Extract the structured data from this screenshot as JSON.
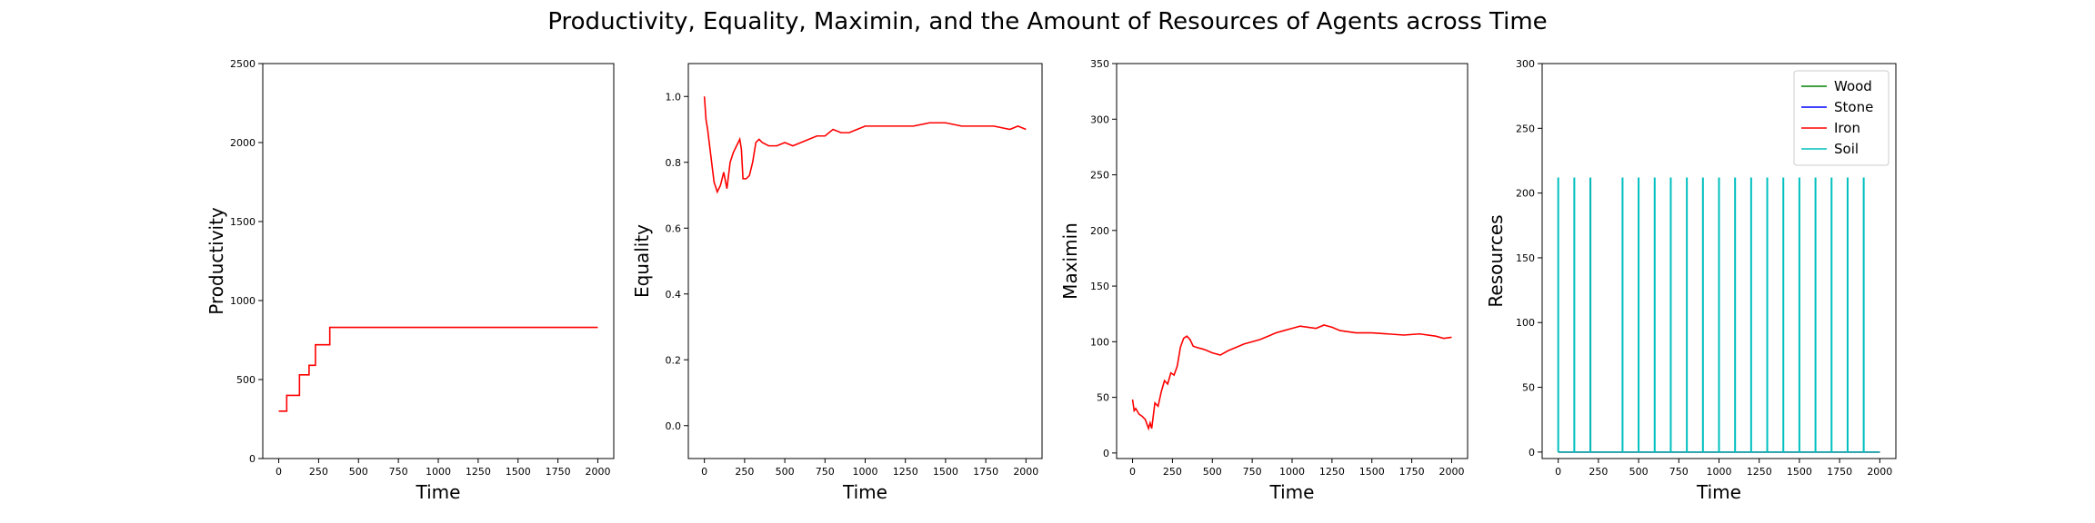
{
  "figure": {
    "title": "Productivity, Equality, Maximin, and the Amount of Resources of Agents across Time"
  },
  "chart_data": [
    {
      "type": "line",
      "xlabel": "Time",
      "ylabel": "Productivity",
      "xlim": [
        -100,
        2100
      ],
      "ylim": [
        0,
        2500
      ],
      "xticks": [
        0,
        250,
        500,
        750,
        1000,
        1250,
        1500,
        1750,
        2000
      ],
      "yticks": [
        0,
        500,
        1000,
        1500,
        2000,
        2500
      ],
      "series": [
        {
          "color": "#ff0000",
          "x": [
            0,
            50,
            50,
            130,
            130,
            190,
            190,
            230,
            230,
            320,
            320,
            2000
          ],
          "y": [
            300,
            300,
            400,
            400,
            530,
            530,
            590,
            590,
            720,
            720,
            830,
            830
          ]
        }
      ]
    },
    {
      "type": "line",
      "xlabel": "Time",
      "ylabel": "Equality",
      "xlim": [
        -100,
        2100
      ],
      "ylim": [
        -0.1,
        1.1
      ],
      "xticks": [
        0,
        250,
        500,
        750,
        1000,
        1250,
        1500,
        1750,
        2000
      ],
      "yticks": [
        0.0,
        0.2,
        0.4,
        0.6,
        0.8,
        1.0
      ],
      "series": [
        {
          "color": "#ff0000",
          "x": [
            0,
            10,
            20,
            30,
            40,
            60,
            80,
            100,
            120,
            140,
            160,
            180,
            200,
            220,
            230,
            240,
            260,
            280,
            300,
            320,
            340,
            360,
            400,
            450,
            500,
            550,
            600,
            650,
            700,
            750,
            800,
            850,
            900,
            950,
            1000,
            1100,
            1200,
            1300,
            1400,
            1500,
            1600,
            1700,
            1800,
            1900,
            1950,
            2000
          ],
          "y": [
            1.0,
            0.93,
            0.9,
            0.86,
            0.82,
            0.74,
            0.71,
            0.73,
            0.77,
            0.72,
            0.8,
            0.83,
            0.85,
            0.87,
            0.84,
            0.75,
            0.75,
            0.76,
            0.8,
            0.86,
            0.87,
            0.86,
            0.85,
            0.85,
            0.86,
            0.85,
            0.86,
            0.87,
            0.88,
            0.88,
            0.9,
            0.89,
            0.89,
            0.9,
            0.91,
            0.91,
            0.91,
            0.91,
            0.92,
            0.92,
            0.91,
            0.91,
            0.91,
            0.9,
            0.91,
            0.9
          ]
        }
      ]
    },
    {
      "type": "line",
      "xlabel": "Time",
      "ylabel": "Maximin",
      "xlim": [
        -100,
        2100
      ],
      "ylim": [
        -5,
        350
      ],
      "xticks": [
        0,
        250,
        500,
        750,
        1000,
        1250,
        1500,
        1750,
        2000
      ],
      "yticks": [
        0,
        50,
        100,
        150,
        200,
        250,
        300,
        350
      ],
      "series": [
        {
          "color": "#ff0000",
          "x": [
            0,
            10,
            20,
            40,
            60,
            80,
            100,
            110,
            120,
            140,
            160,
            180,
            200,
            220,
            240,
            260,
            280,
            300,
            320,
            340,
            360,
            380,
            400,
            450,
            500,
            550,
            600,
            650,
            700,
            750,
            800,
            850,
            900,
            950,
            1000,
            1050,
            1100,
            1150,
            1200,
            1250,
            1300,
            1400,
            1500,
            1600,
            1700,
            1800,
            1900,
            1950,
            2000
          ],
          "y": [
            48,
            38,
            40,
            35,
            33,
            30,
            22,
            27,
            22,
            45,
            42,
            55,
            65,
            62,
            72,
            70,
            78,
            95,
            103,
            105,
            102,
            96,
            95,
            93,
            90,
            88,
            92,
            95,
            98,
            100,
            102,
            105,
            108,
            110,
            112,
            114,
            113,
            112,
            115,
            113,
            110,
            108,
            108,
            107,
            106,
            107,
            105,
            103,
            104
          ]
        }
      ]
    },
    {
      "type": "line",
      "xlabel": "Time",
      "ylabel": "Resources",
      "xlim": [
        -100,
        2100
      ],
      "ylim": [
        -5,
        300
      ],
      "xticks": [
        0,
        250,
        500,
        750,
        1000,
        1250,
        1500,
        1750,
        2000
      ],
      "yticks": [
        0,
        50,
        100,
        150,
        200,
        250,
        300
      ],
      "legend": "top-right",
      "series": [
        {
          "name": "Wood",
          "color": "#008000",
          "baseline": 0,
          "spikes": [],
          "height": 0
        },
        {
          "name": "Stone",
          "color": "#0000ff",
          "baseline": 0,
          "spikes": [],
          "height": 0
        },
        {
          "name": "Iron",
          "color": "#ff0000",
          "baseline": 0,
          "spikes": [
            200
          ],
          "height": 212
        },
        {
          "name": "Soil",
          "color": "#00bfbf",
          "baseline": 0,
          "spikes": [
            0,
            100,
            200,
            400,
            500,
            600,
            700,
            800,
            900,
            1000,
            1100,
            1200,
            1300,
            1400,
            1500,
            1600,
            1700,
            1800,
            1900
          ],
          "height": 212
        }
      ]
    }
  ]
}
